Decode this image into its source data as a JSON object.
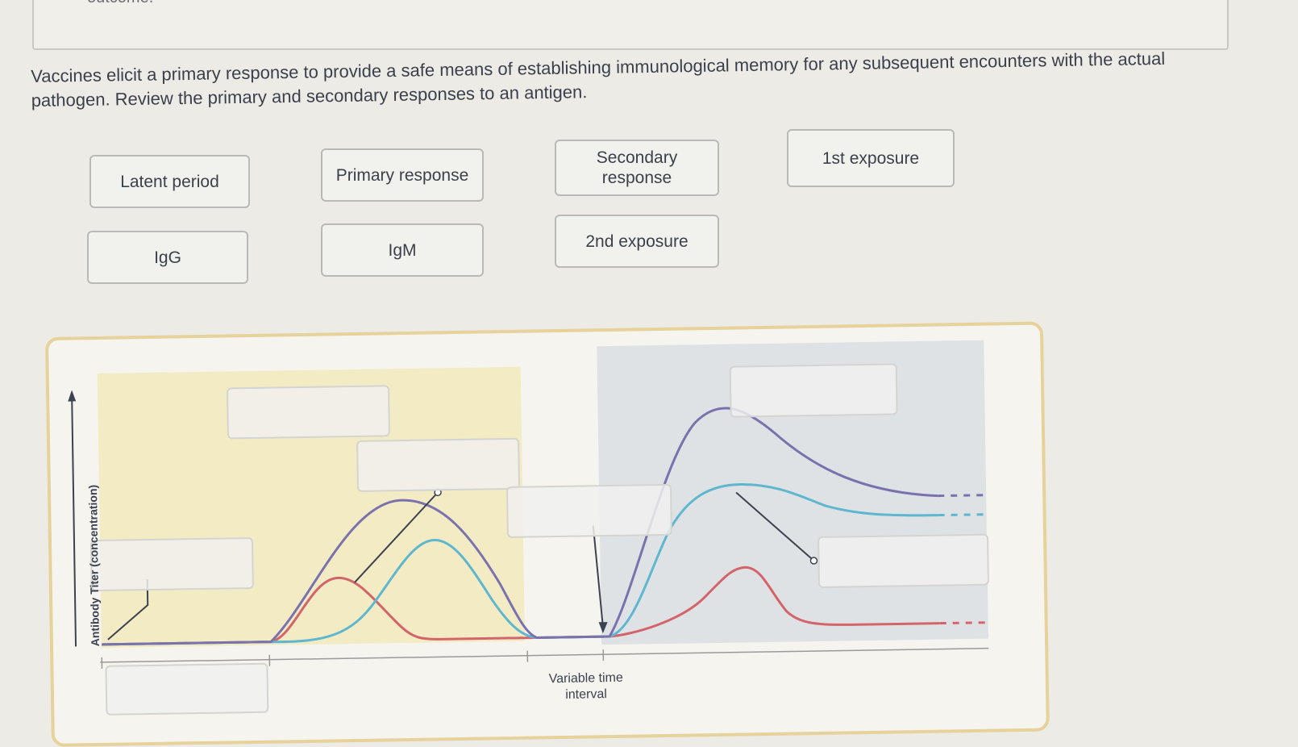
{
  "header_fragment": "outcome.",
  "prompt": "Vaccines elicit a primary response to provide a safe means of establishing immunological memory for any subsequent encounters with the actual pathogen. Review the primary and secondary responses to an antigen.",
  "labels": {
    "latent_period": "Latent period",
    "primary_response": "Primary response",
    "secondary_response": "Secondary response",
    "first_exposure": "1st exposure",
    "igg": "IgG",
    "igm": "IgM",
    "second_exposure": "2nd exposure"
  },
  "diagram": {
    "y_axis_label": "Antibody Titer (concentration)",
    "interval_label": "Variable time interval",
    "colors": {
      "primary_shade": "#f3ebc4",
      "secondary_shade": "#dfe2e5",
      "total_curve": "#7a72ad",
      "igg_curve": "#5fb6cf",
      "igm_curve": "#d3646a"
    }
  }
}
